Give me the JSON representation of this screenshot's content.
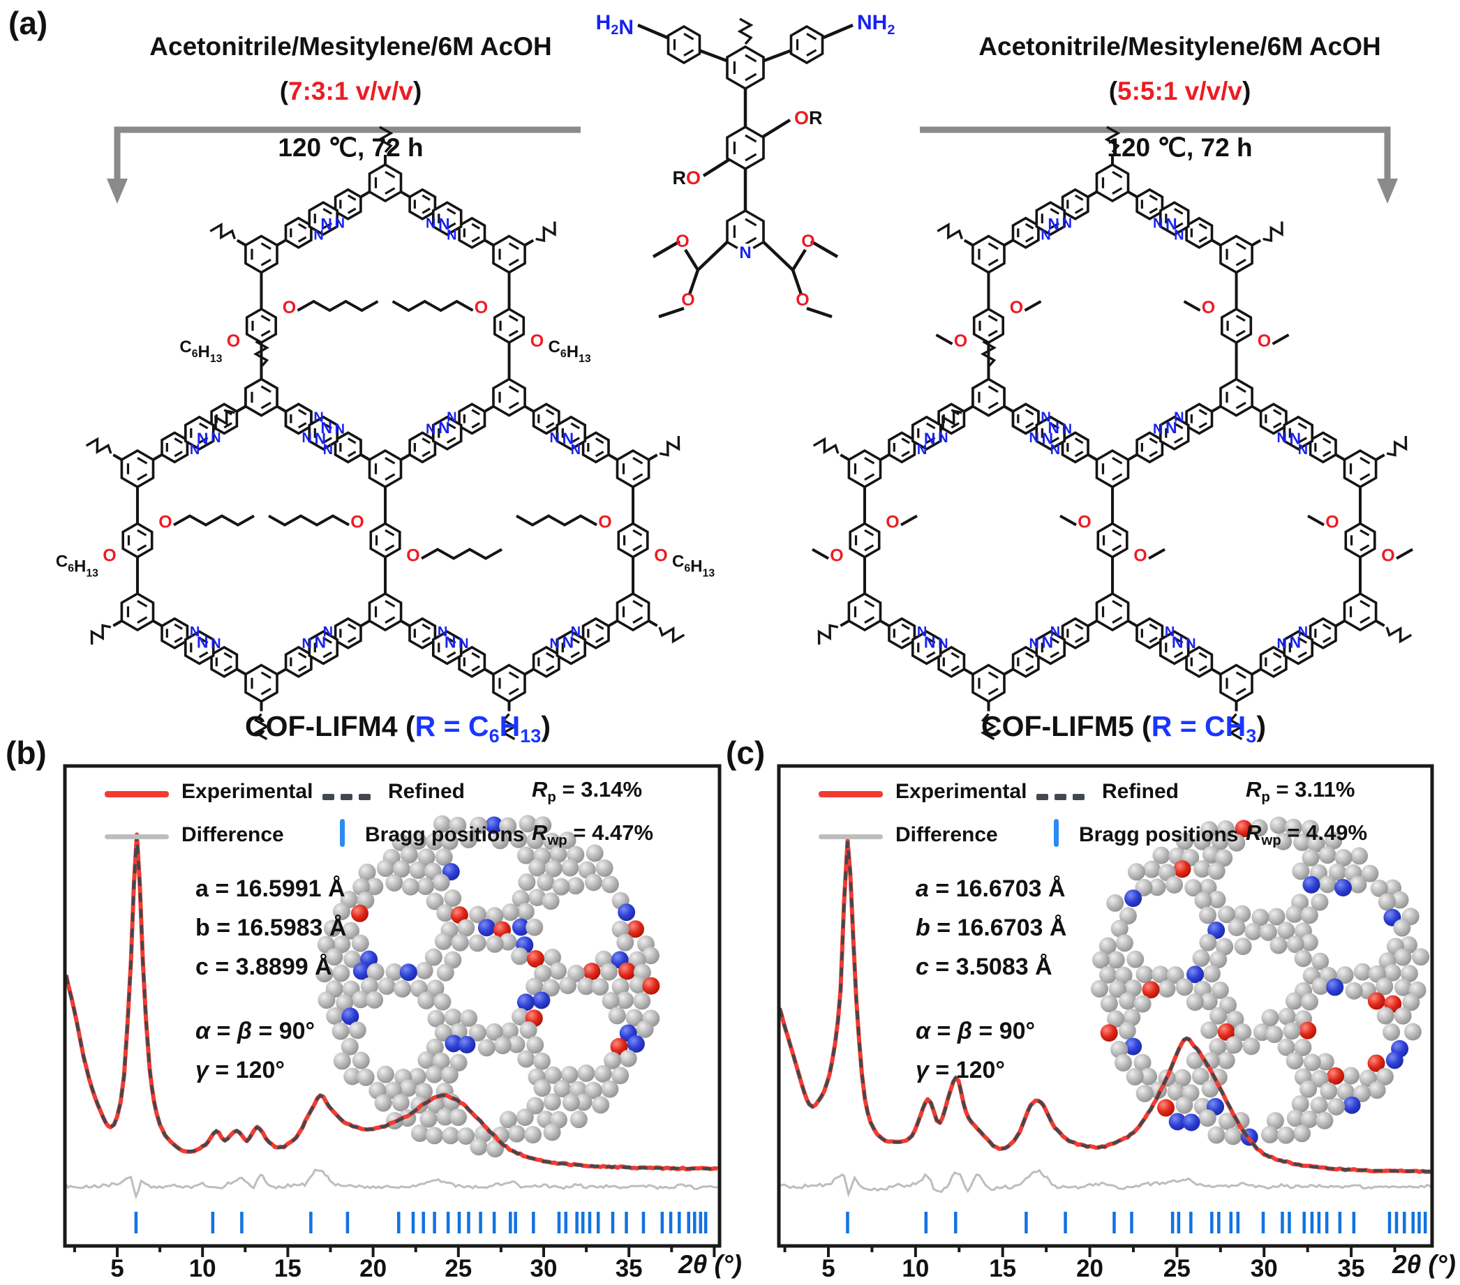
{
  "colors": {
    "accent_red": "#ec1c24",
    "atom_blue": "#1822f0",
    "blue_text": "#1a35ff",
    "arrow_gray": "#8a8a8a",
    "experimental": "#f23b31",
    "refined": "#42484d",
    "difference": "#bdbdbd",
    "bragg": "#1273e0",
    "frame": "#1a1a1a",
    "bond": "#141414"
  },
  "panel_a": {
    "label": "(a)",
    "left_route": {
      "solvent": "Acetonitrile/Mesitylene/6M AcOH",
      "ratio_open": "(",
      "ratio": "7:3:1 v/v/v",
      "ratio_close": ")",
      "conditions": "120 ℃, 72 h"
    },
    "right_route": {
      "solvent": "Acetonitrile/Mesitylene/6M AcOH",
      "ratio_open": "(",
      "ratio": "5:5:1 v/v/v",
      "ratio_close": ")",
      "conditions": "120 ℃, 72 h"
    },
    "monomer": {
      "amine_left": [
        {
          "t": "H"
        },
        {
          "t": "2",
          "sub": 1
        },
        {
          "t": "N"
        }
      ],
      "amine_right": [
        {
          "t": "NH"
        },
        {
          "t": "2",
          "sub": 1
        }
      ],
      "or": [
        {
          "t": "O",
          "c": 1
        },
        {
          "t": "R"
        }
      ],
      "ro": [
        {
          "t": "R"
        },
        {
          "t": "O",
          "c": 1
        }
      ],
      "n": "N",
      "o": "O"
    },
    "cof_left": {
      "name": "COF-LIFM4",
      "r_open": " (",
      "r_close": ")",
      "r_segments": [
        {
          "t": "R = C"
        },
        {
          "t": "6",
          "sub": 1
        },
        {
          "t": "H"
        },
        {
          "t": "13",
          "sub": 1
        }
      ],
      "chain": [
        {
          "t": "C"
        },
        {
          "t": "6",
          "sub": 1
        },
        {
          "t": "H"
        },
        {
          "t": "13",
          "sub": 1
        }
      ],
      "n": "N",
      "o": "O"
    },
    "cof_right": {
      "name": "COF-LIFM5",
      "r_open": " (",
      "r_close": ")",
      "r_segments": [
        {
          "t": "R = CH"
        },
        {
          "t": "3",
          "sub": 1
        }
      ],
      "chain": null,
      "n": "N",
      "o": "O"
    }
  },
  "panel_b": {
    "label": "(b)",
    "legend": {
      "experimental": "Experimental",
      "refined": "Refined",
      "difference": "Difference",
      "bragg": "Bragg positions"
    },
    "rp": [
      {
        "t": "R",
        "i": 1
      },
      {
        "t": "p",
        "sub": 1
      },
      {
        "t": " = 3.14%"
      }
    ],
    "rwp": [
      {
        "t": "R",
        "i": 1
      },
      {
        "t": "wp",
        "sub": 1
      },
      {
        "t": " = 4.47%"
      }
    ],
    "cell_lines": [
      [
        {
          "t": "a = 16.5991 Å"
        }
      ],
      [
        {
          "t": "b = 16.5983 Å"
        }
      ],
      [
        {
          "t": "c = 3.8899 Å"
        }
      ]
    ],
    "angle_lines": [
      [
        {
          "t": "α",
          "i": 1
        },
        {
          "t": " = "
        },
        {
          "t": "β",
          "i": 1
        },
        {
          "t": " = 90°"
        }
      ],
      [
        {
          "t": "γ",
          "i": 1
        },
        {
          "t": " = 120°"
        }
      ]
    ]
  },
  "panel_c": {
    "label": "(c)",
    "legend": {
      "experimental": "Experimental",
      "refined": "Refined",
      "difference": "Difference",
      "bragg": "Bragg positions"
    },
    "rp": [
      {
        "t": "R",
        "i": 1
      },
      {
        "t": "p",
        "sub": 1
      },
      {
        "t": " = 3.11%"
      }
    ],
    "rwp": [
      {
        "t": "R",
        "i": 1
      },
      {
        "t": "wp",
        "sub": 1
      },
      {
        "t": " = 4.49%"
      }
    ],
    "cell_lines": [
      [
        {
          "t": "a",
          "i": 1
        },
        {
          "t": " = 16.6703 Å"
        }
      ],
      [
        {
          "t": "b",
          "i": 1
        },
        {
          "t": " = 16.6703 Å"
        }
      ],
      [
        {
          "t": "c",
          "i": 1
        },
        {
          "t": " = 3.5083 Å"
        }
      ]
    ],
    "angle_lines": [
      [
        {
          "t": "α",
          "i": 1
        },
        {
          "t": " = "
        },
        {
          "t": "β",
          "i": 1
        },
        {
          "t": " = 90°"
        }
      ],
      [
        {
          "t": "γ",
          "i": 1
        },
        {
          "t": " = 120°"
        }
      ]
    ]
  },
  "xrd_common": {
    "x_label": "2θ (°)"
  },
  "chart_data": [
    {
      "panel": "b",
      "type": "line",
      "product": "COF-LIFM4",
      "xlabel": "2θ (°)",
      "ylabel": "",
      "xlim": [
        2,
        40.2
      ],
      "x_ticks": [
        5,
        10,
        15,
        20,
        25,
        30,
        35
      ],
      "grid": false,
      "legend_position": "top-inside",
      "r_factors": {
        "Rp": "3.14%",
        "Rwp": "4.47%"
      },
      "unit_cell": {
        "a": "16.5991 Å",
        "b": "16.5983 Å",
        "c": "3.8899 Å",
        "alpha": "90°",
        "beta": "90°",
        "gamma": "120°"
      },
      "series": [
        {
          "name": "Experimental",
          "color": "#f23b31",
          "style": "solid",
          "points": [
            [
              2,
              58
            ],
            [
              2.5,
              47
            ],
            [
              3.2,
              30
            ],
            [
              4,
              17.5
            ],
            [
              4.6,
              12.5
            ],
            [
              5,
              16
            ],
            [
              5.4,
              28
            ],
            [
              5.8,
              62
            ],
            [
              6.15,
              100
            ],
            [
              6.5,
              62
            ],
            [
              6.9,
              30
            ],
            [
              7.5,
              13.5
            ],
            [
              8.5,
              6.5
            ],
            [
              9.5,
              5.5
            ],
            [
              10.3,
              8
            ],
            [
              10.8,
              11.5
            ],
            [
              11.3,
              8.5
            ],
            [
              12,
              11.5
            ],
            [
              12.6,
              8.5
            ],
            [
              13.2,
              12.5
            ],
            [
              13.9,
              8
            ],
            [
              14.6,
              6.5
            ],
            [
              15.5,
              9.5
            ],
            [
              16.2,
              16
            ],
            [
              16.9,
              22
            ],
            [
              17.4,
              19
            ],
            [
              18.1,
              15
            ],
            [
              19,
              12.5
            ],
            [
              20,
              12
            ],
            [
              21,
              13.5
            ],
            [
              22,
              16
            ],
            [
              23,
              19.5
            ],
            [
              23.9,
              22
            ],
            [
              24.8,
              21
            ],
            [
              25.8,
              17
            ],
            [
              27,
              10.5
            ],
            [
              28,
              6
            ],
            [
              29.5,
              3
            ],
            [
              31,
              1.7
            ],
            [
              33,
              0.9
            ],
            [
              35,
              0.5
            ],
            [
              37,
              0.3
            ],
            [
              40.2,
              0.1
            ]
          ]
        },
        {
          "name": "Refined",
          "color": "#42484d",
          "style": "dashed",
          "follows": "Experimental"
        },
        {
          "name": "Difference",
          "color": "#bdbdbd",
          "style": "solid",
          "points": [
            [
              2,
              5.5
            ],
            [
              3,
              5
            ],
            [
              4,
              5.5
            ],
            [
              5,
              6
            ],
            [
              5.8,
              8
            ],
            [
              6.1,
              2
            ],
            [
              6.4,
              7
            ],
            [
              7,
              5
            ],
            [
              8,
              5.5
            ],
            [
              9,
              5
            ],
            [
              10,
              6
            ],
            [
              10.8,
              4.5
            ],
            [
              11.5,
              6
            ],
            [
              12.3,
              7.5
            ],
            [
              13,
              5
            ],
            [
              13.4,
              9
            ],
            [
              14,
              5
            ],
            [
              15,
              5.5
            ],
            [
              16,
              6
            ],
            [
              16.6,
              10
            ],
            [
              17.2,
              9
            ],
            [
              17.8,
              6
            ],
            [
              19,
              5.5
            ],
            [
              20,
              5
            ],
            [
              21,
              5.5
            ],
            [
              22,
              5
            ],
            [
              23,
              6
            ],
            [
              24,
              7
            ],
            [
              25,
              5.5
            ],
            [
              26,
              5
            ],
            [
              27,
              5.5
            ],
            [
              28,
              6.5
            ],
            [
              29,
              5
            ],
            [
              30,
              5.5
            ],
            [
              31,
              5
            ],
            [
              32,
              5.5
            ],
            [
              33,
              5
            ],
            [
              34,
              5.5
            ],
            [
              35,
              5
            ],
            [
              36,
              5.5
            ],
            [
              37,
              5
            ],
            [
              38,
              5.5
            ],
            [
              39,
              5
            ],
            [
              40.2,
              5.2
            ]
          ]
        }
      ],
      "bragg_positions": [
        6.1,
        10.6,
        12.3,
        16.35,
        18.5,
        21.5,
        22.35,
        22.95,
        23.6,
        24.4,
        25.05,
        25.6,
        26.3,
        27.1,
        28.05,
        28.35,
        29.4,
        30.9,
        31.3,
        31.95,
        32.3,
        32.7,
        33.2,
        34.05,
        34.85,
        35.85,
        36.95,
        37.45,
        37.95,
        38.5,
        38.85,
        39.2,
        39.5
      ]
    },
    {
      "panel": "c",
      "type": "line",
      "product": "COF-LIFM5",
      "xlabel": "2θ (°)",
      "ylabel": "",
      "xlim": [
        2.2,
        39.6
      ],
      "x_ticks": [
        5,
        10,
        15,
        20,
        25,
        30,
        35
      ],
      "grid": false,
      "legend_position": "top-inside",
      "r_factors": {
        "Rp": "3.11%",
        "Rwp": "4.49%"
      },
      "unit_cell": {
        "a": "16.6703 Å",
        "b": "16.6703 Å",
        "c": "3.5083 Å",
        "alpha": "90°",
        "beta": "90°",
        "gamma": "120°"
      },
      "series": [
        {
          "name": "Experimental",
          "color": "#f23b31",
          "style": "solid",
          "points": [
            [
              2.2,
              49.5
            ],
            [
              3,
              35
            ],
            [
              3.9,
              20.5
            ],
            [
              4.6,
              23
            ],
            [
              5.2,
              33
            ],
            [
              5.7,
              55
            ],
            [
              6.1,
              100
            ],
            [
              6.6,
              52
            ],
            [
              7.1,
              22
            ],
            [
              7.8,
              11.5
            ],
            [
              8.8,
              9
            ],
            [
              9.8,
              11
            ],
            [
              10.7,
              22
            ],
            [
              11.4,
              15
            ],
            [
              12.3,
              28.5
            ],
            [
              12.9,
              18
            ],
            [
              13.6,
              13
            ],
            [
              14.8,
              7
            ],
            [
              15.8,
              10.5
            ],
            [
              16.6,
              20
            ],
            [
              17.2,
              21
            ],
            [
              18,
              13.5
            ],
            [
              19,
              9
            ],
            [
              20.5,
              7.5
            ],
            [
              21.5,
              9
            ],
            [
              22.5,
              12
            ],
            [
              23.5,
              19
            ],
            [
              24.5,
              29.5
            ],
            [
              25.4,
              40
            ],
            [
              26,
              38
            ],
            [
              26.8,
              32
            ],
            [
              27.8,
              22
            ],
            [
              28.8,
              12.5
            ],
            [
              30,
              5.5
            ],
            [
              32,
              2.2
            ],
            [
              34,
              1
            ],
            [
              36,
              0.5
            ],
            [
              38,
              0.3
            ],
            [
              39.6,
              0.2
            ]
          ]
        },
        {
          "name": "Refined",
          "color": "#42484d",
          "style": "dashed",
          "follows": "Experimental"
        },
        {
          "name": "Difference",
          "color": "#bdbdbd",
          "style": "solid",
          "points": [
            [
              2.2,
              6
            ],
            [
              3,
              5.5
            ],
            [
              4,
              6
            ],
            [
              5,
              6.5
            ],
            [
              5.9,
              9
            ],
            [
              6.15,
              3
            ],
            [
              6.5,
              8
            ],
            [
              7,
              5.5
            ],
            [
              8,
              5
            ],
            [
              9,
              6
            ],
            [
              10,
              6.5
            ],
            [
              10.7,
              9
            ],
            [
              11.2,
              4
            ],
            [
              11.8,
              6
            ],
            [
              12.4,
              10
            ],
            [
              13,
              4.5
            ],
            [
              13.5,
              9.5
            ],
            [
              14.2,
              5
            ],
            [
              15,
              5.5
            ],
            [
              16,
              6
            ],
            [
              16.8,
              10.5
            ],
            [
              17.4,
              9
            ],
            [
              18,
              6
            ],
            [
              19,
              5.5
            ],
            [
              20,
              6
            ],
            [
              21,
              6.5
            ],
            [
              21.8,
              5.5
            ],
            [
              22.5,
              6
            ],
            [
              23.5,
              6.5
            ],
            [
              24.5,
              7
            ],
            [
              25.5,
              8
            ],
            [
              26.5,
              6
            ],
            [
              27.5,
              5.5
            ],
            [
              28.5,
              6.5
            ],
            [
              30,
              5.5
            ],
            [
              31,
              6
            ],
            [
              32,
              5.5
            ],
            [
              33,
              6
            ],
            [
              34,
              5.5
            ],
            [
              35,
              6
            ],
            [
              36,
              5.5
            ],
            [
              37,
              6
            ],
            [
              38,
              5.5
            ],
            [
              39,
              6
            ],
            [
              39.6,
              5.8
            ]
          ]
        }
      ],
      "bragg_positions": [
        6.1,
        10.6,
        12.3,
        16.35,
        18.6,
        21.4,
        22.4,
        24.75,
        25.1,
        25.8,
        27.0,
        27.4,
        28.1,
        28.5,
        29.95,
        31.05,
        31.45,
        32.3,
        32.75,
        33.15,
        33.6,
        34.35,
        35.15,
        37.2,
        37.6,
        38.05,
        38.55,
        38.9,
        39.25
      ]
    }
  ]
}
